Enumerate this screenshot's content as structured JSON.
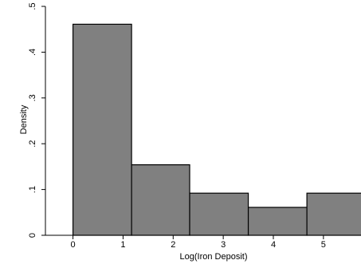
{
  "chart_data": {
    "type": "bar",
    "title": "",
    "xlabel": "Log(Iron Deposit)",
    "ylabel": "Density",
    "x_ticks": [
      0,
      1,
      2,
      3,
      4,
      5
    ],
    "x_tick_labels": [
      "0",
      "1",
      "2",
      "3",
      "4",
      "5"
    ],
    "y_ticks": [
      0,
      0.1,
      0.2,
      0.3,
      0.4,
      0.5
    ],
    "y_tick_labels": [
      "0",
      ".1",
      ".2",
      ".3",
      ".4",
      ".5"
    ],
    "xlim": [
      -0.55,
      5.75
    ],
    "ylim": [
      0,
      0.5
    ],
    "bins": [
      {
        "start": 0.0,
        "end": 1.17,
        "value": 0.461
      },
      {
        "start": 1.17,
        "end": 2.33,
        "value": 0.154
      },
      {
        "start": 2.33,
        "end": 3.5,
        "value": 0.092
      },
      {
        "start": 3.5,
        "end": 4.67,
        "value": 0.061
      },
      {
        "start": 4.67,
        "end": 5.84,
        "value": 0.092
      }
    ],
    "bar_color": "#808080",
    "bar_edge_color": "#000000",
    "grid": false,
    "legend": "none"
  }
}
